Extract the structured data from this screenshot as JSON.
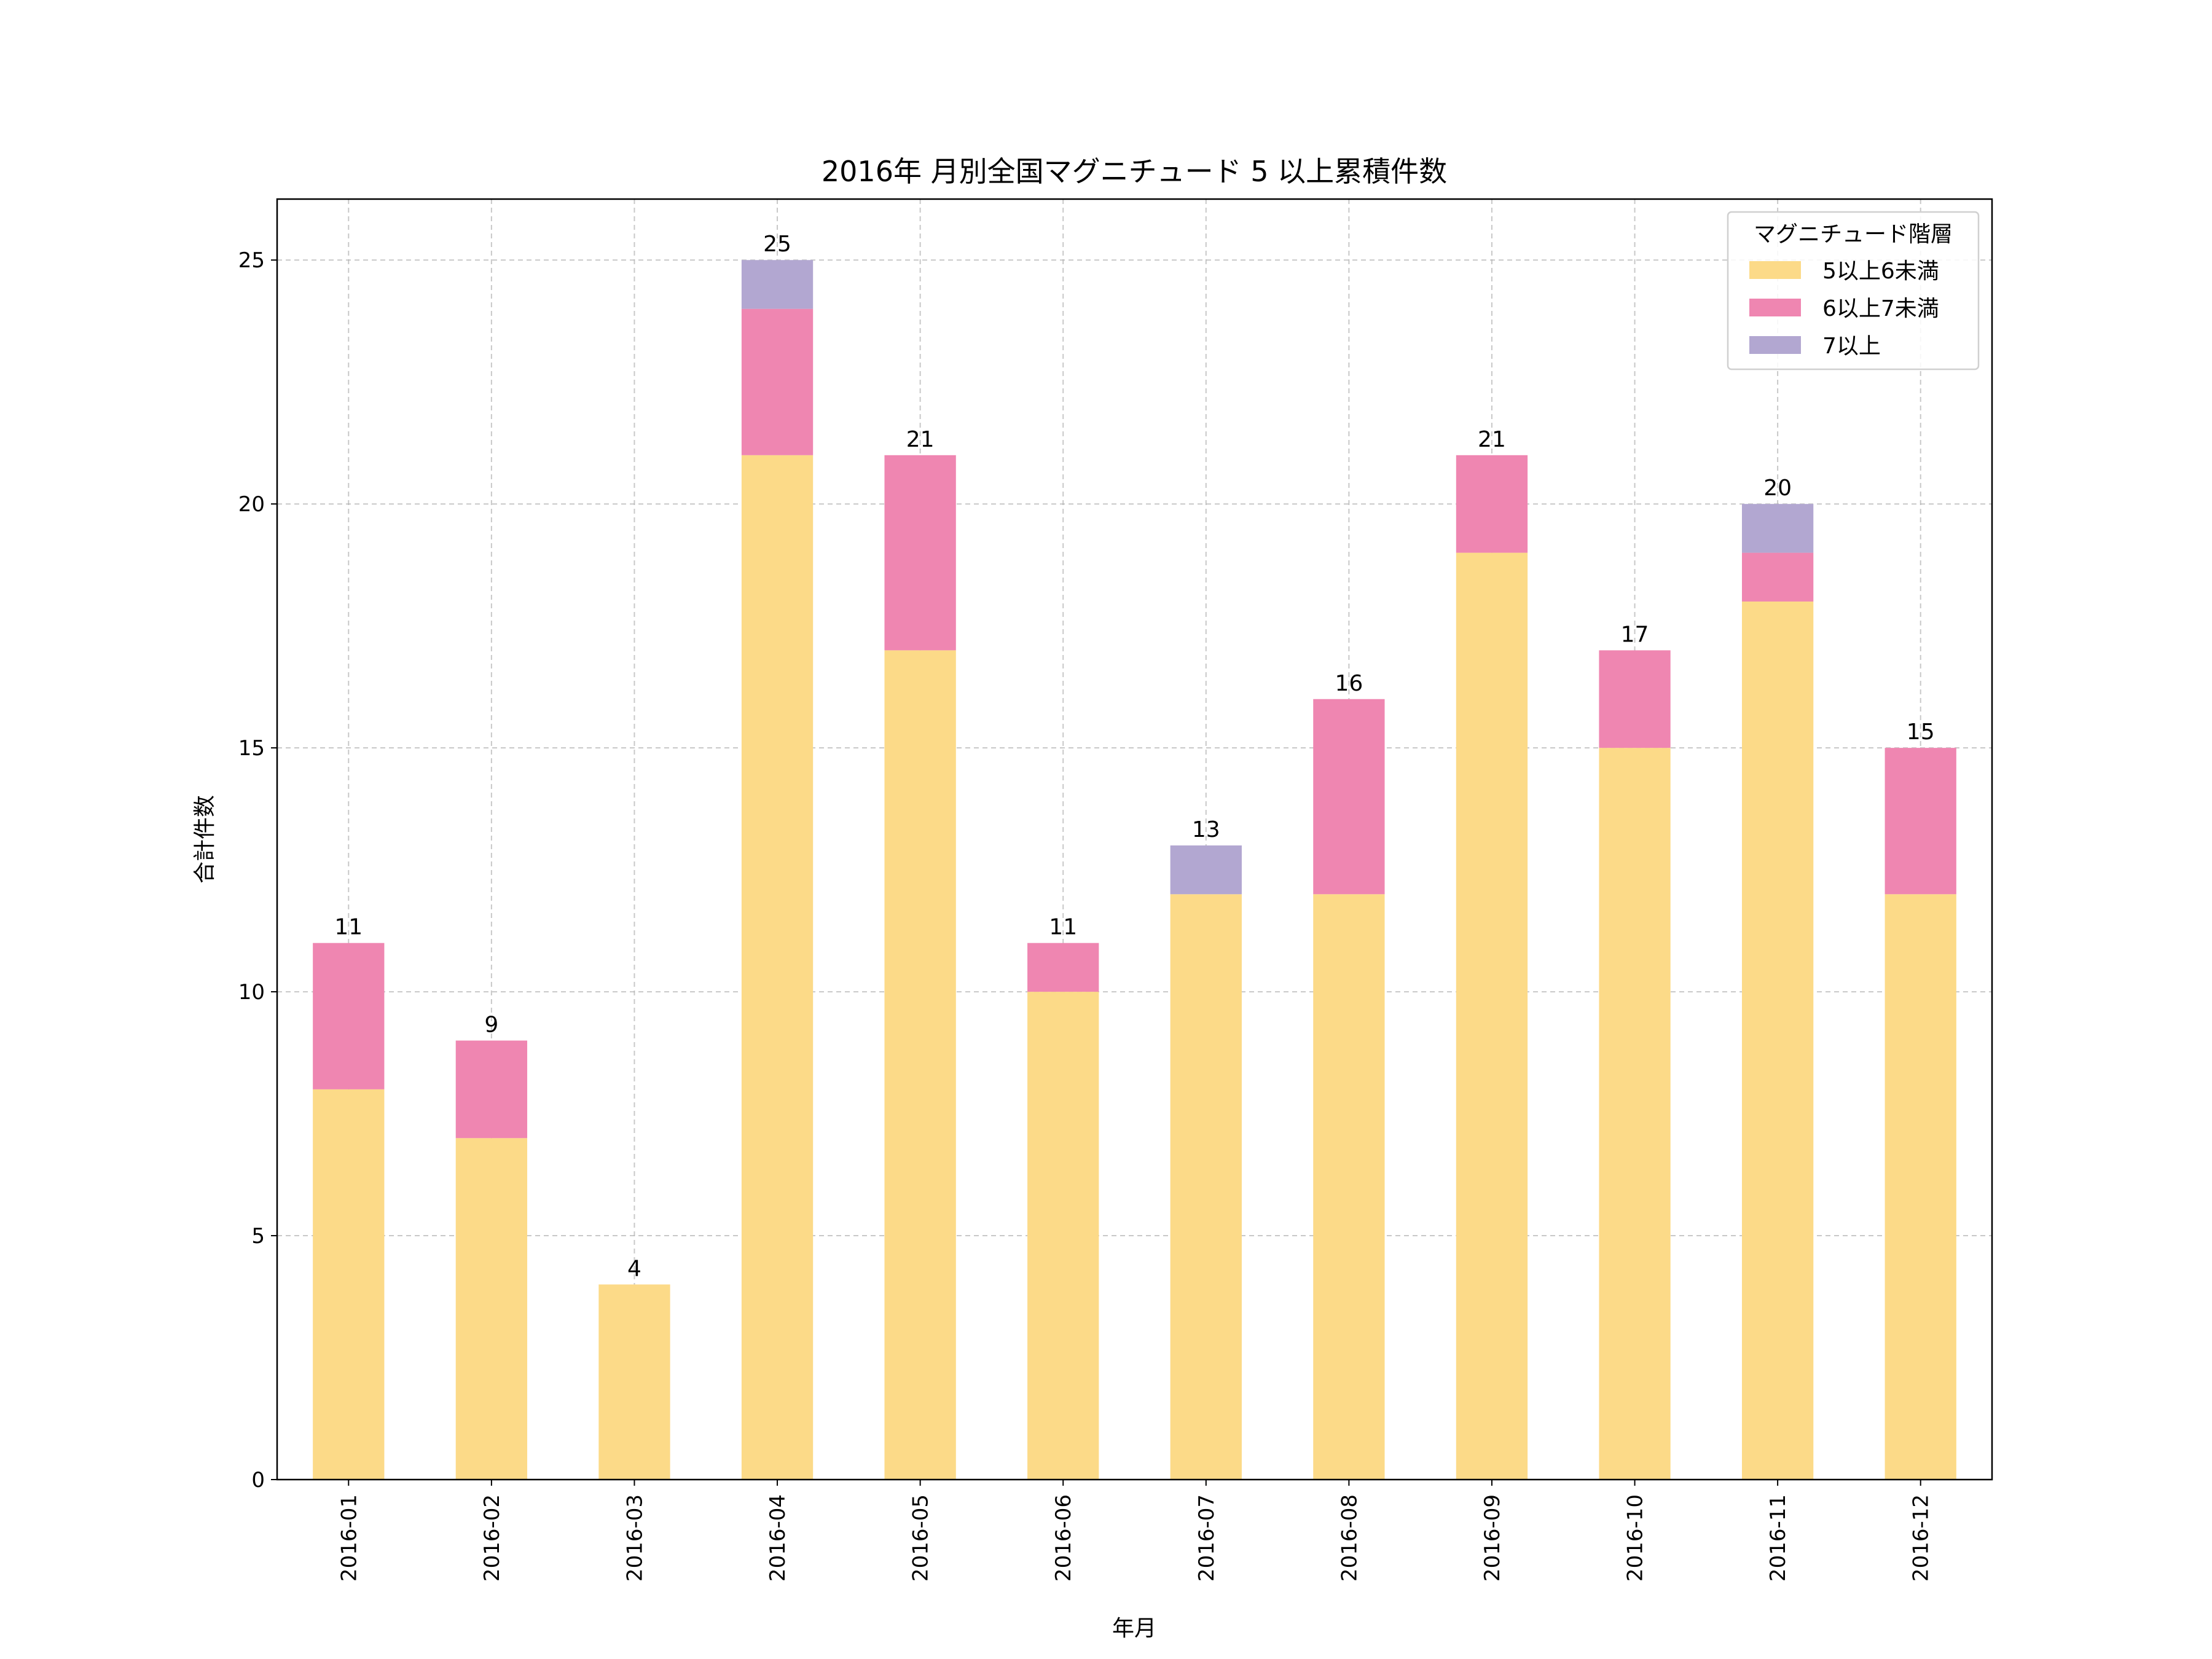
{
  "chart_data": {
    "type": "bar",
    "stacked": true,
    "title": "2016年 月別全国マグニチュード 5 以上累積件数",
    "xlabel": "年月",
    "ylabel": "合計件数",
    "ylim": [
      0,
      26.25
    ],
    "yticks": [
      0,
      5,
      10,
      15,
      20,
      25
    ],
    "grid": true,
    "legend": {
      "title": "マグニチュード階層",
      "placement": "top-right"
    },
    "categories": [
      "2016-01",
      "2016-02",
      "2016-03",
      "2016-04",
      "2016-05",
      "2016-06",
      "2016-07",
      "2016-08",
      "2016-09",
      "2016-10",
      "2016-11",
      "2016-12"
    ],
    "series": [
      {
        "name": "5以上6未満",
        "color": "#FCDA88",
        "values": [
          8,
          7,
          4,
          21,
          17,
          10,
          12,
          12,
          19,
          15,
          18,
          12
        ]
      },
      {
        "name": "6以上7未満",
        "color": "#EF86B1",
        "values": [
          3,
          2,
          0,
          3,
          4,
          1,
          0,
          4,
          2,
          2,
          1,
          3
        ]
      },
      {
        "name": "7以上",
        "color": "#B2A7D1",
        "values": [
          0,
          0,
          0,
          1,
          0,
          0,
          1,
          0,
          0,
          0,
          1,
          0
        ]
      }
    ],
    "totals": [
      11,
      9,
      4,
      25,
      21,
      11,
      13,
      16,
      21,
      17,
      20,
      15
    ]
  }
}
